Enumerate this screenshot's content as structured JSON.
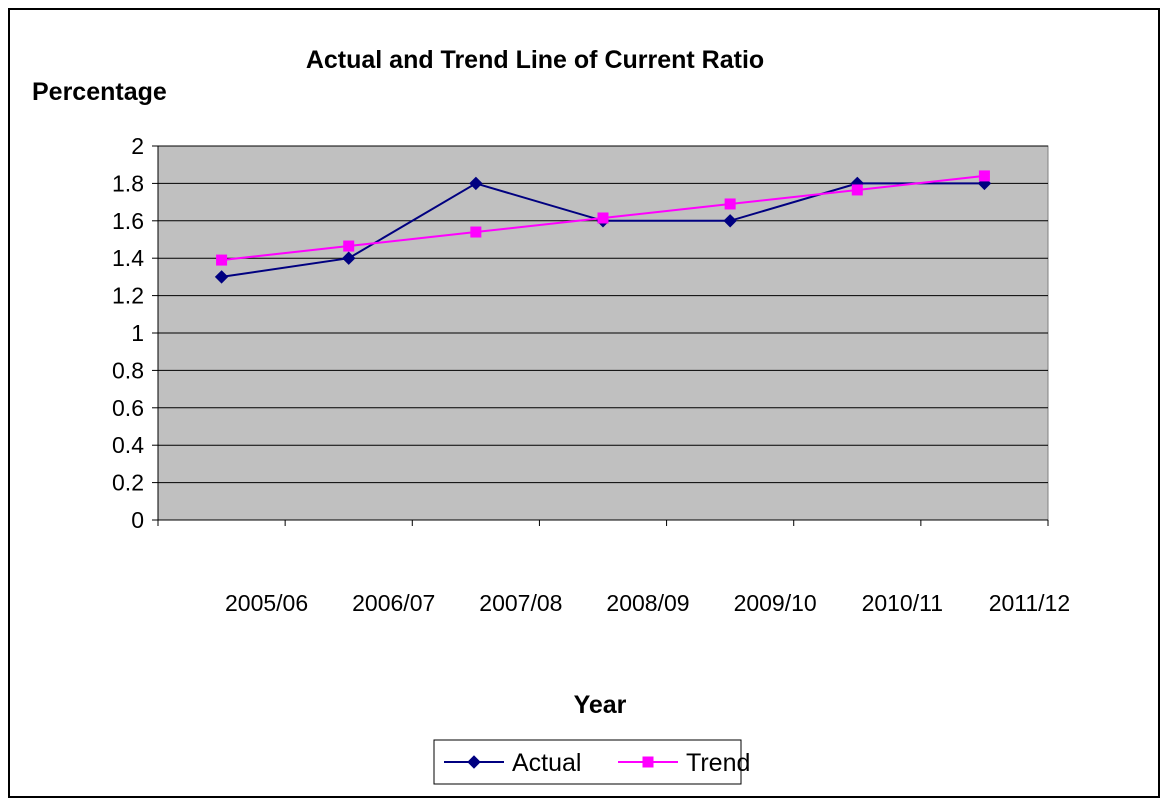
{
  "chart_data": {
    "type": "line",
    "title": "Actual and Trend Line of Current Ratio",
    "ylabel": "Percentage",
    "xlabel": "Year",
    "categories": [
      "2005/06",
      "2006/07",
      "2007/08",
      "2008/09",
      "2009/10",
      "2010/11",
      "2011/12"
    ],
    "ylim": [
      0,
      2
    ],
    "ytick_step": 0.2,
    "grid": true,
    "legend_position": "bottom",
    "plot_background": "#c0c0c0",
    "series": [
      {
        "name": "Actual",
        "color": "#000080",
        "marker": "diamond",
        "values": [
          1.3,
          1.4,
          1.8,
          1.6,
          1.6,
          1.8,
          1.8
        ]
      },
      {
        "name": "Trend",
        "color": "#ff00ff",
        "marker": "square",
        "values": [
          1.39,
          1.465,
          1.54,
          1.615,
          1.69,
          1.765,
          1.84
        ]
      }
    ]
  }
}
